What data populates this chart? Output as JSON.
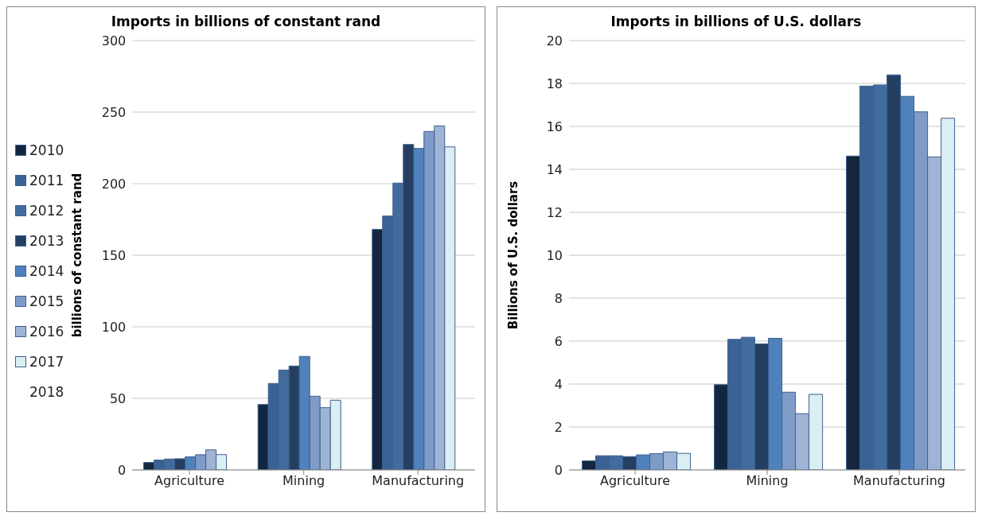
{
  "chart_data": [
    {
      "type": "bar",
      "title": "Imports in billions of constant rand",
      "ylabel": "billions of constant rand",
      "categories": [
        "Agriculture",
        "Mining",
        "Manufacturing"
      ],
      "ylim": [
        0,
        300
      ],
      "yticks": [
        0,
        50,
        100,
        150,
        200,
        250,
        300
      ],
      "grid": "y",
      "legend": "left",
      "series": [
        {
          "name": "2010",
          "color": "#12263f",
          "values": [
            5.2,
            45.7,
            168.1
          ]
        },
        {
          "name": "2011",
          "color": "#3a6295",
          "values": [
            6.9,
            60.4,
            177.4
          ]
        },
        {
          "name": "2012",
          "color": "#426ca0",
          "values": [
            7.6,
            69.8,
            200.4
          ]
        },
        {
          "name": "2013",
          "color": "#243f62",
          "values": [
            7.8,
            72.6,
            227.4
          ]
        },
        {
          "name": "2014",
          "color": "#4f81bd",
          "values": [
            9.1,
            79.3,
            224.6
          ]
        },
        {
          "name": "2015",
          "color": "#7f9cc9",
          "values": [
            10.6,
            51.5,
            236.5
          ]
        },
        {
          "name": "2016",
          "color": "#9fb3d5",
          "values": [
            14,
            43.5,
            240.4
          ]
        },
        {
          "name": "2017",
          "color": "#dbeef4",
          "values": [
            10.7,
            48.7,
            225.7
          ]
        },
        {
          "name": "2018",
          "values": [
            null,
            null,
            null
          ]
        }
      ]
    },
    {
      "type": "bar",
      "title": "Imports in billions of U.S. dollars",
      "ylabel": "Billions of U.S. dollars",
      "categories": [
        "Agriculture",
        "Mining",
        "Manufacturing"
      ],
      "ylim": [
        0,
        20
      ],
      "yticks": [
        0,
        2,
        4,
        6,
        8,
        10,
        12,
        14,
        16,
        18,
        20
      ],
      "grid": "y",
      "series": [
        {
          "color": "#12263f",
          "values": [
            0.42,
            3.97,
            14.62
          ]
        },
        {
          "color": "#3a6295",
          "values": [
            0.66,
            6.08,
            17.88
          ]
        },
        {
          "color": "#426ca0",
          "values": [
            0.66,
            6.18,
            17.93
          ]
        },
        {
          "color": "#243f62",
          "values": [
            0.62,
            5.87,
            18.4
          ]
        },
        {
          "color": "#4f81bd",
          "values": [
            0.7,
            6.13,
            17.4
          ]
        },
        {
          "color": "#7f9cc9",
          "values": [
            0.76,
            3.62,
            16.68
          ]
        },
        {
          "color": "#9fb3d5",
          "values": [
            0.84,
            2.62,
            14.58
          ]
        },
        {
          "color": "#dbeef4",
          "values": [
            0.77,
            3.52,
            16.38
          ]
        }
      ]
    }
  ]
}
